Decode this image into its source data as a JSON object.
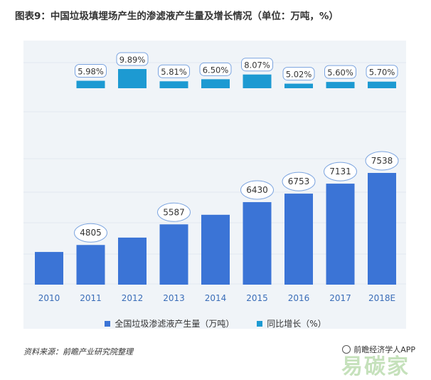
{
  "title": "图表9：中国垃圾填埋场产生的渗滤液产生量及增长情况（单位：万吨，%）",
  "source": "资料来源：前瞻产业研究院整理",
  "app_credit": "前瞻经济学人APP",
  "watermark": "易碳家",
  "colors": {
    "volume_bar": "#3b74d6",
    "growth_bar": "#1d9ad2",
    "background": "#f0f4f8",
    "label_ellipse": "#7aa3df"
  },
  "legend": [
    {
      "label": "全国垃圾渗滤液产生量（万吨）",
      "color": "#3b74d6"
    },
    {
      "label": "同比增长（%）",
      "color": "#1d9ad2"
    }
  ],
  "chart_data": {
    "type": "bar",
    "categories": [
      "2010",
      "2011",
      "2012",
      "2013",
      "2014",
      "2015",
      "2016",
      "2017",
      "2018E"
    ],
    "series": [
      {
        "name": "全国垃圾渗滤液产生量（万吨）",
        "values": [
          4540,
          4805,
          5085,
          5587,
          5950,
          6430,
          6753,
          7131,
          7538
        ],
        "labels": [
          "",
          "4805",
          "",
          "5587",
          "",
          "6430",
          "6753",
          "7131",
          "7538"
        ]
      },
      {
        "name": "同比增长（%）",
        "values": [
          null,
          5.98,
          9.89,
          5.81,
          6.5,
          8.07,
          5.02,
          5.6,
          5.7
        ],
        "labels": [
          "",
          "5.98%",
          "9.89%",
          "5.81%",
          "6.50%",
          "8.07%",
          "5.02%",
          "5.60%",
          "5.70%"
        ]
      }
    ],
    "grid": true,
    "legend_position": "bottom"
  }
}
